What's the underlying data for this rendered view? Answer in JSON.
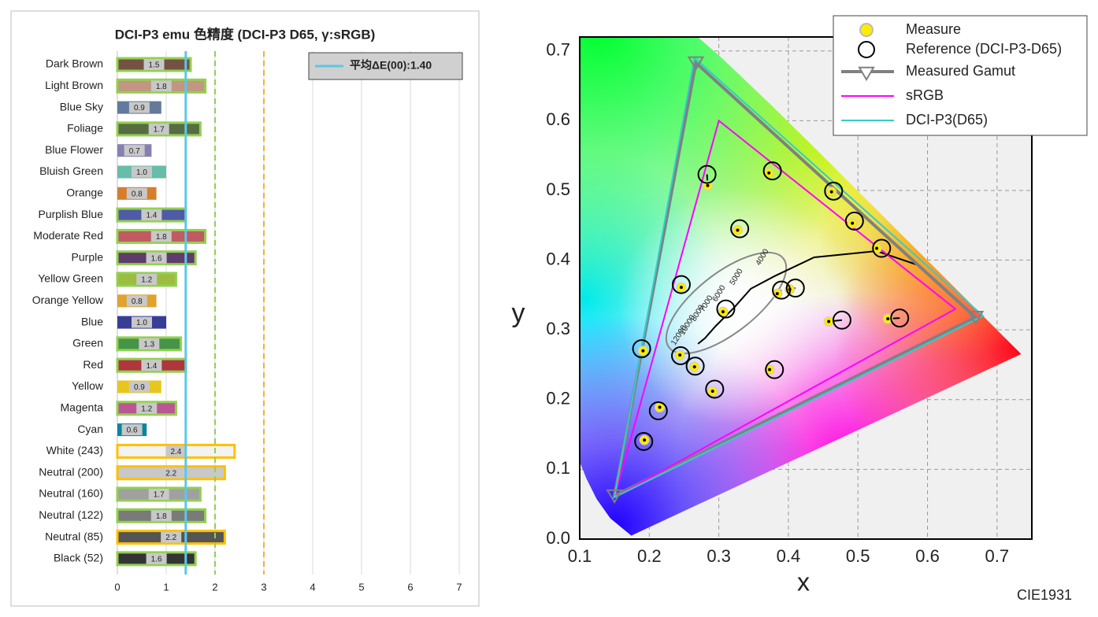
{
  "chart_data": [
    {
      "type": "hbar",
      "title": "DCI-P3 emu 色精度 (DCI-P3 D65, γ:sRGB)",
      "categories": [
        "Dark Brown",
        "Light Brown",
        "Blue Sky",
        "Foliage",
        "Blue Flower",
        "Bluish Green",
        "Orange",
        "Purplish Blue",
        "Moderate Red",
        "Purple",
        "Yellow Green",
        "Orange Yellow",
        "Blue",
        "Green",
        "Red",
        "Yellow",
        "Magenta",
        "Cyan",
        "White (243)",
        "Neutral (200)",
        "Neutral (160)",
        "Neutral (122)",
        "Neutral (85)",
        "Black (52)"
      ],
      "values": [
        1.5,
        1.8,
        0.9,
        1.7,
        0.7,
        1.0,
        0.8,
        1.4,
        1.8,
        1.6,
        1.2,
        0.8,
        1.0,
        1.3,
        1.4,
        0.9,
        1.2,
        0.6,
        2.4,
        2.2,
        1.7,
        1.8,
        2.2,
        1.6
      ],
      "value_labels": [
        "1.5",
        "1.8",
        "0.9",
        "1.7",
        "0.7",
        "1.0",
        "0.8",
        "1.4",
        "1.8",
        "1.6",
        "1.2",
        "0.8",
        "1.0",
        "1.3",
        "1.4",
        "0.9",
        "1.2",
        "0.6",
        "2.4",
        "2.2",
        "1.7",
        "1.8",
        "2.2",
        "1.6"
      ],
      "colors": [
        "#735244",
        "#c29682",
        "#627a9d",
        "#576c43",
        "#8580b1",
        "#67bdaa",
        "#d67e2c",
        "#505ba6",
        "#c15a63",
        "#5e3c6c",
        "#9dbc40",
        "#e0a32e",
        "#383d96",
        "#469449",
        "#af363c",
        "#e7c71f",
        "#bb5695",
        "#0885a1",
        "#f3f3f3",
        "#c8c8c8",
        "#a0a0a0",
        "#7a7a7a",
        "#555555",
        "#343434"
      ],
      "edge_colors": [
        "#92d050",
        "#92d050",
        null,
        "#92d050",
        null,
        null,
        null,
        "#92d050",
        "#92d050",
        "#92d050",
        "#92d050",
        null,
        null,
        "#92d050",
        "#92d050",
        null,
        "#92d050",
        null,
        "#ffc000",
        "#ffc000",
        "#92d050",
        "#92d050",
        "#ffc000",
        "#92d050"
      ],
      "xlim": [
        0,
        7
      ],
      "xticks": [
        0,
        1,
        2,
        3,
        4,
        5,
        6,
        7
      ],
      "grid": true,
      "mean_line": {
        "value": 1.4,
        "label": "平均ΔE(00):1.40",
        "color": "#5bc8e8"
      },
      "reference_lines": [
        {
          "value": 2,
          "color": "#92d050"
        },
        {
          "value": 3,
          "color": "#f5b324"
        }
      ]
    },
    {
      "type": "chromaticity",
      "xlabel": "x",
      "ylabel": "y",
      "footnote": "CIE1931",
      "xlim": [
        0.1,
        0.75
      ],
      "ylim": [
        0,
        0.72
      ],
      "xticks": [
        0.1,
        0.2,
        0.3,
        0.4,
        0.5,
        0.6,
        0.7
      ],
      "yticks": [
        {
          "value": 0,
          "label": "0.0"
        },
        0.1,
        0.2,
        0.3,
        0.4,
        0.5,
        0.6,
        0.7
      ],
      "grid": true,
      "legend": "upper right",
      "series": [
        {
          "name": "Measure",
          "color": "#ffeb00",
          "x": [
            0.284,
            0.372,
            0.462,
            0.492,
            0.527,
            0.327,
            0.246,
            0.384,
            0.402,
            0.306,
            0.458,
            0.543,
            0.191,
            0.244,
            0.265,
            0.373,
            0.291,
            0.215,
            0.193
          ],
          "y": [
            0.507,
            0.525,
            0.498,
            0.453,
            0.417,
            0.443,
            0.361,
            0.352,
            0.358,
            0.326,
            0.312,
            0.316,
            0.27,
            0.264,
            0.247,
            0.243,
            0.212,
            0.189,
            0.142
          ]
        },
        {
          "name": "Reference (DCI-P3-D65)",
          "color": "#000000",
          "x": [
            0.283,
            0.377,
            0.465,
            0.495,
            0.534,
            0.33,
            0.246,
            0.39,
            0.41,
            0.31,
            0.477,
            0.56,
            0.189,
            0.245,
            0.266,
            0.38,
            0.294,
            0.213,
            0.192
          ],
          "y": [
            0.523,
            0.528,
            0.499,
            0.456,
            0.417,
            0.445,
            0.365,
            0.357,
            0.36,
            0.33,
            0.314,
            0.317,
            0.273,
            0.263,
            0.248,
            0.243,
            0.215,
            0.184,
            0.14
          ]
        }
      ],
      "gamuts": [
        {
          "name": "Measured Gamut",
          "color": "#808080",
          "x": [
            0.267,
            0.669,
            0.15
          ],
          "y": [
            0.683,
            0.318,
            0.062
          ]
        },
        {
          "name": "sRGB",
          "color": "#ff00ff",
          "x": [
            0.64,
            0.3,
            0.15
          ],
          "y": [
            0.33,
            0.6,
            0.06
          ]
        },
        {
          "name": "DCI-P3(D65)",
          "color": "#33cccc",
          "x": [
            0.68,
            0.265,
            0.15
          ],
          "y": [
            0.32,
            0.69,
            0.06
          ]
        }
      ],
      "cct_labels": [
        4000,
        5000,
        6000,
        7000,
        8000,
        10000,
        12000
      ]
    }
  ]
}
